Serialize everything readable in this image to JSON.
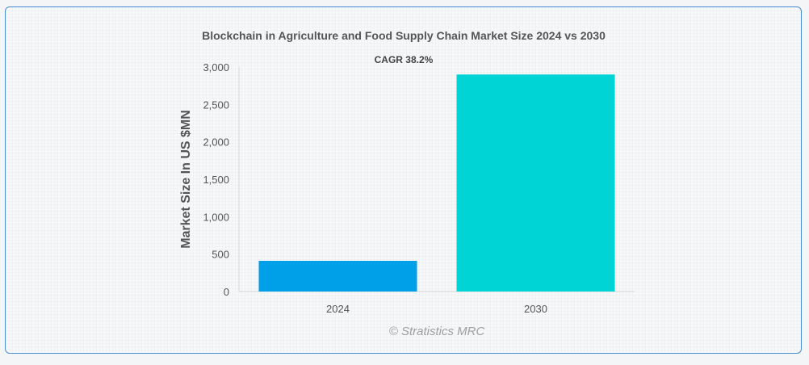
{
  "chart_data": {
    "type": "bar",
    "title": "Blockchain in Agriculture and Food Supply Chain Market Size 2024 vs 2030",
    "annotation": "CAGR 38.2%",
    "xlabel": "",
    "ylabel": "Market Size In US $MN",
    "categories": [
      "2024",
      "2030"
    ],
    "values": [
      410,
      2900
    ],
    "ylim": [
      0,
      3000
    ],
    "yticks": [
      0,
      500,
      1000,
      1500,
      2000,
      2500,
      3000
    ],
    "ytick_labels": [
      "0",
      "500",
      "1,000",
      "1,500",
      "2,000",
      "2,500",
      "3,000"
    ],
    "bar_colors": [
      "#00a0e8",
      "#00d4d4"
    ],
    "grid": false,
    "legend": "none"
  },
  "watermark": "© Stratistics MRC"
}
